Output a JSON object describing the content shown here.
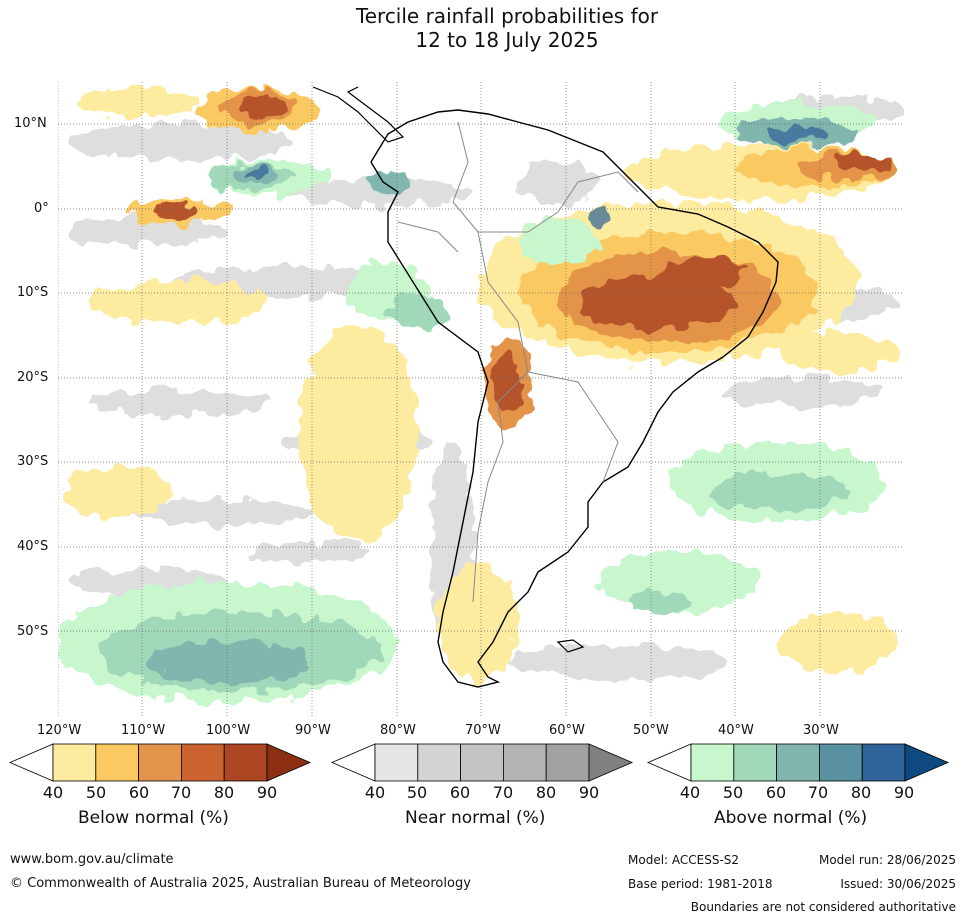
{
  "title_line1": "Tercile rainfall probabilities for",
  "title_line2": "12 to 18 July 2025",
  "lon_ticks": [
    "120°W",
    "110°W",
    "100°W",
    "90°W",
    "80°W",
    "70°W",
    "60°W",
    "50°W",
    "40°W",
    "30°W"
  ],
  "lat_ticks": [
    "10°N",
    "0°",
    "10°S",
    "20°S",
    "30°S",
    "40°S",
    "50°S"
  ],
  "legends": [
    {
      "title": "Below normal (%)",
      "ticks": [
        "40",
        "50",
        "60",
        "70",
        "80",
        "90"
      ],
      "colors": [
        "#ffffff",
        "#fdeba0",
        "#fbc962",
        "#e3944a",
        "#cb6331",
        "#ab4522",
        "#8b2e12"
      ]
    },
    {
      "title": "Near normal (%)",
      "ticks": [
        "40",
        "50",
        "60",
        "70",
        "80",
        "90"
      ],
      "colors": [
        "#ffffff",
        "#e6e6e6",
        "#d4d4d4",
        "#c4c4c4",
        "#b4b4b4",
        "#a2a2a2",
        "#808080"
      ]
    },
    {
      "title": "Above normal (%)",
      "ticks": [
        "40",
        "50",
        "60",
        "70",
        "80",
        "90"
      ],
      "colors": [
        "#ffffff",
        "#c8f7cd",
        "#a2d8ba",
        "#80b6ae",
        "#5a92a1",
        "#2e6298",
        "#0e4980"
      ]
    }
  ],
  "footer": {
    "url": "www.bom.gov.au/climate",
    "copyright": "© Commonwealth of Australia 2025, Australian Bureau of Meteorology",
    "model": "Model: ACCESS-S2",
    "base_period": "Base period: 1981-2018",
    "model_run": "Model run: 28/06/2025",
    "issued": "Issued: 30/06/2025",
    "disclaimer": "Boundaries are not considered authoritative"
  }
}
